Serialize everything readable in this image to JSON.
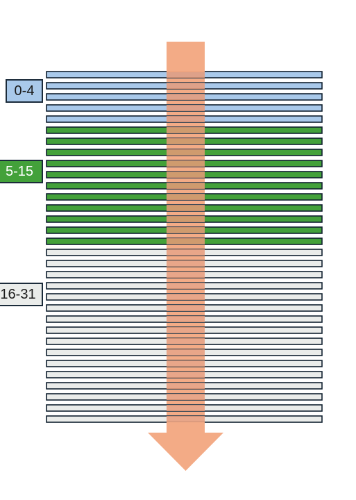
{
  "colors": {
    "arrow": "#f3ab86",
    "arrow_overlap": "#e89a78",
    "bar_stroke": "#0f1f2e"
  },
  "groups": [
    {
      "label": "0-4",
      "count": 5,
      "fill": "#a9c9ea",
      "text_color": "#1a1a1a"
    },
    {
      "label": "5-15",
      "count": 11,
      "fill": "#43a13a",
      "text_color": "#ffffff"
    },
    {
      "label": "16-31",
      "count": 16,
      "fill": "#eaecea",
      "text_color": "#1a1a1a"
    }
  ]
}
